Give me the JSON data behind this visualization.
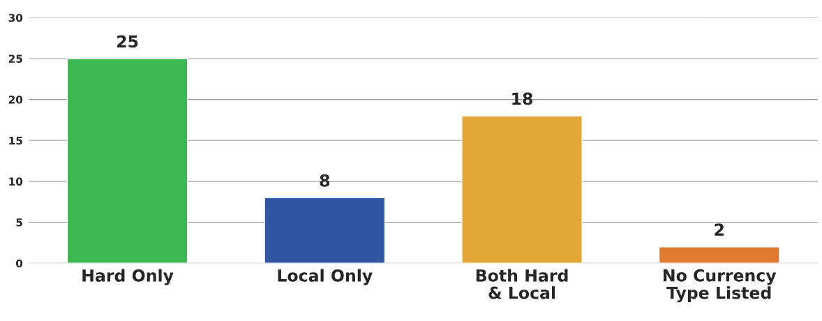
{
  "chart_data": {
    "type": "bar",
    "categories": [
      "Hard Only",
      "Local Only",
      "Both Hard\n& Local",
      "No Currency\nType Listed"
    ],
    "values": [
      25,
      8,
      18,
      2
    ],
    "colors": [
      "#3cb853",
      "#2f56a0",
      "#e3a738",
      "#e07b2e"
    ],
    "ylim": [
      0,
      30
    ],
    "yticks": [
      0,
      5,
      10,
      15,
      20,
      25,
      30
    ],
    "grid": "y",
    "data_labels": true
  }
}
